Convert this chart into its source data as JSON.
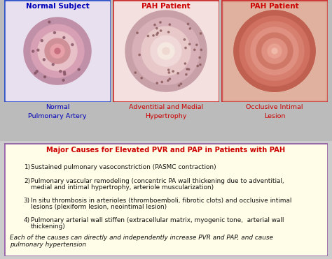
{
  "title_left": "Normal Subject",
  "title_center": "PAH Patient",
  "title_right": "PAH Patient",
  "title_left_color": "#0000BB",
  "title_center_color": "#CC0000",
  "title_right_color": "#CC0000",
  "label_left_line1": "Normal",
  "label_left_line2": "Pulmonary Artery",
  "label_center_line1": "Adventitial and Medial",
  "label_center_line2": "Hypertrophy",
  "label_right_line1": "Occlusive Intimal",
  "label_right_line2": "Lesion",
  "label_color_left": "#0000BB",
  "label_color_center": "#CC0000",
  "label_color_right": "#CC0000",
  "box_title": "Major Causes for Elevated PVR and PAP in Patients with PAH",
  "box_title_color": "#CC0000",
  "box_bg": "#FFFDE7",
  "box_border": "#9966AA",
  "item1": "Sustained pulmonary vasoconstriction (PASMC contraction)",
  "item2a": "Pulmonary vascular remodeling (concentric PA wall thickening due to adventitial,",
  "item2b": "medial and intimal hypertrophy, arteriole muscularization)",
  "item3a": "In situ thrombosis in arterioles (thromboemboli, fibrotic clots) and occlusive intimal",
  "item3b": "lesions (plexiform lesion, neointimal lesion)",
  "item4a": "Pulmonary arterial wall stiffen (extracellular matrix, myogenic tone,  arterial wall",
  "item4b": "thickening)",
  "footer1": "Each of the causes can directly and independently increase PVR and PAP, and cause",
  "footer2": "pulmonary hypertension",
  "item_color": "#111111",
  "footer_color": "#111111",
  "bg_top": "#BBBBBB",
  "bg_main": "#EEEEEE",
  "left_border_color": "#3355CC",
  "center_border_color": "#CC3333",
  "right_border_color": "#CC3333",
  "panel_bg_left": "#E8E0EE",
  "panel_bg_center": "#F5E0E0",
  "panel_bg_right": "#EED8C8"
}
